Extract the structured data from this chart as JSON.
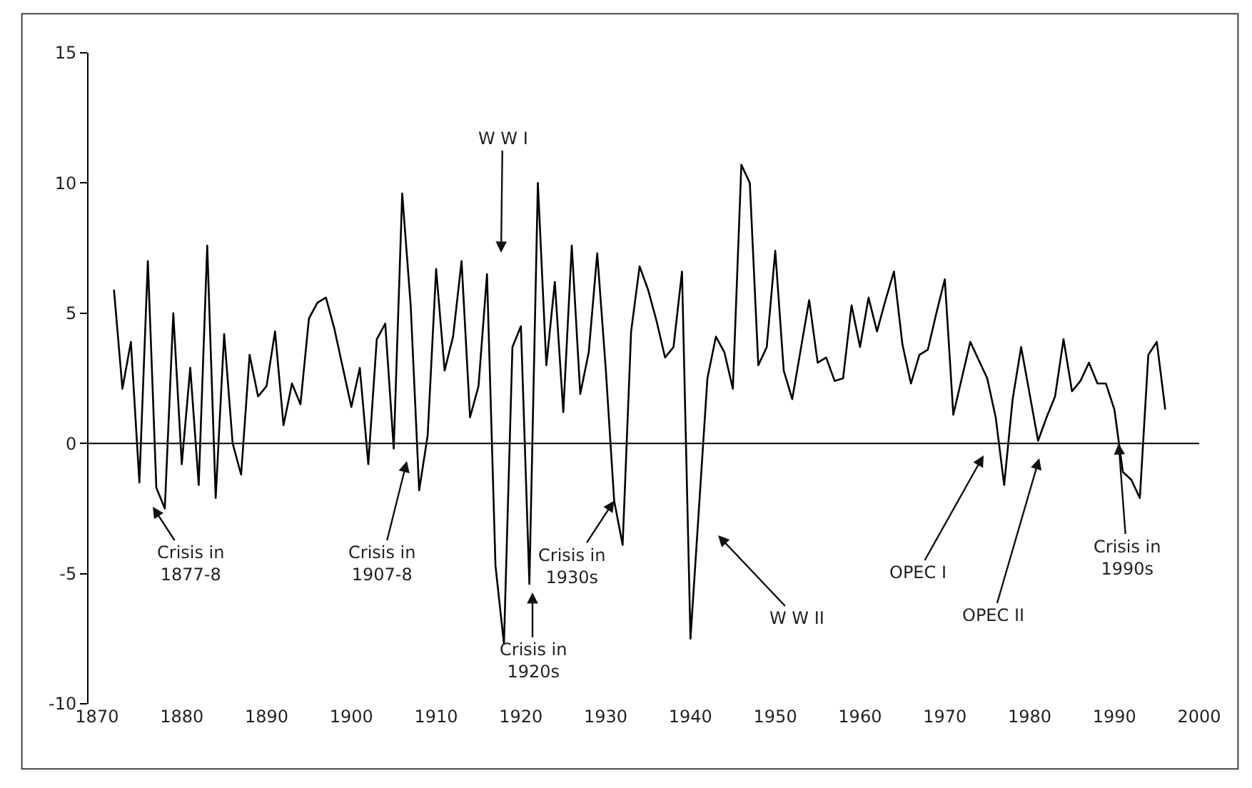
{
  "chart_data": {
    "type": "line",
    "x": [
      1872,
      1873,
      1874,
      1875,
      1876,
      1877,
      1878,
      1879,
      1880,
      1881,
      1882,
      1883,
      1884,
      1885,
      1886,
      1887,
      1888,
      1889,
      1890,
      1891,
      1892,
      1893,
      1894,
      1895,
      1896,
      1897,
      1898,
      1899,
      1900,
      1901,
      1902,
      1903,
      1904,
      1905,
      1906,
      1907,
      1908,
      1909,
      1910,
      1911,
      1912,
      1913,
      1914,
      1915,
      1916,
      1917,
      1918,
      1919,
      1920,
      1921,
      1922,
      1923,
      1924,
      1925,
      1926,
      1927,
      1928,
      1929,
      1930,
      1931,
      1932,
      1933,
      1934,
      1935,
      1936,
      1937,
      1938,
      1939,
      1940,
      1941,
      1942,
      1943,
      1944,
      1945,
      1946,
      1947,
      1948,
      1949,
      1950,
      1951,
      1952,
      1953,
      1954,
      1955,
      1956,
      1957,
      1958,
      1959,
      1960,
      1961,
      1962,
      1963,
      1964,
      1965,
      1966,
      1967,
      1968,
      1969,
      1970,
      1971,
      1972,
      1973,
      1974,
      1975,
      1976,
      1977,
      1978,
      1979,
      1980,
      1981,
      1982,
      1983,
      1984,
      1985,
      1986,
      1987,
      1988,
      1989,
      1990,
      1991,
      1992,
      1993,
      1994,
      1995,
      1996
    ],
    "series": [
      {
        "color": "#000000",
        "values": [
          5.9,
          2.1,
          3.9,
          -1.5,
          7.0,
          -1.7,
          -2.5,
          5.0,
          -0.8,
          2.9,
          -1.6,
          7.6,
          -2.1,
          4.2,
          0.0,
          -1.2,
          3.4,
          1.8,
          2.2,
          4.3,
          0.7,
          2.3,
          1.5,
          4.8,
          5.4,
          5.6,
          4.4,
          2.9,
          1.4,
          2.9,
          -0.8,
          4.0,
          4.6,
          -0.2,
          9.6,
          5.3,
          -1.8,
          0.3,
          6.7,
          2.8,
          4.1,
          7.0,
          1.0,
          2.2,
          6.5,
          -4.7,
          -7.7,
          3.7,
          4.5,
          -5.4,
          10.0,
          3.0,
          6.2,
          1.2,
          7.6,
          1.9,
          3.5,
          7.3,
          2.9,
          -2.2,
          -3.9,
          4.3,
          6.8,
          5.9,
          4.7,
          3.3,
          3.7,
          6.6,
          -7.5,
          -2.5,
          2.5,
          4.1,
          3.5,
          2.1,
          10.7,
          10.0,
          3.0,
          3.7,
          7.4,
          2.8,
          1.7,
          3.6,
          5.5,
          3.1,
          3.3,
          2.4,
          2.5,
          5.3,
          3.7,
          5.6,
          4.3,
          5.5,
          6.6,
          3.8,
          2.3,
          3.4,
          3.6,
          5.0,
          6.3,
          1.1,
          2.5,
          3.9,
          3.2,
          2.5,
          1.0,
          -1.6,
          1.7,
          3.7,
          1.9,
          0.1,
          1.0,
          1.8,
          4.0,
          2.0,
          2.4,
          3.1,
          2.3,
          2.3,
          1.3,
          -1.1,
          -1.4,
          -2.1,
          3.4,
          3.9,
          1.3
        ]
      }
    ],
    "xlim": [
      1869,
      2000
    ],
    "xticks": [
      1870,
      1880,
      1890,
      1900,
      1910,
      1920,
      1930,
      1940,
      1950,
      1960,
      1970,
      1980,
      1990,
      2000
    ],
    "ylim": [
      -10,
      15
    ],
    "yticks": [
      -10,
      -5,
      0,
      5,
      10,
      15
    ],
    "marker": "none",
    "line_style": "solid",
    "ref_lines": [
      {
        "axis": "y",
        "value": 0,
        "color": "#000000"
      }
    ],
    "annotations": [
      "Crisis in\n1877-8",
      "Crisis in\n1907-8",
      "W W I",
      "Crisis in\n1920s",
      {
        "text": "Crisis in\n1930s",
        "x": 1931,
        "y": -2.2
      },
      "W W II",
      "OPEC I",
      "OPEC II",
      {
        "text": "Crisis in\n1990s",
        "x": 1990.5,
        "y": 0
      }
    ]
  }
}
